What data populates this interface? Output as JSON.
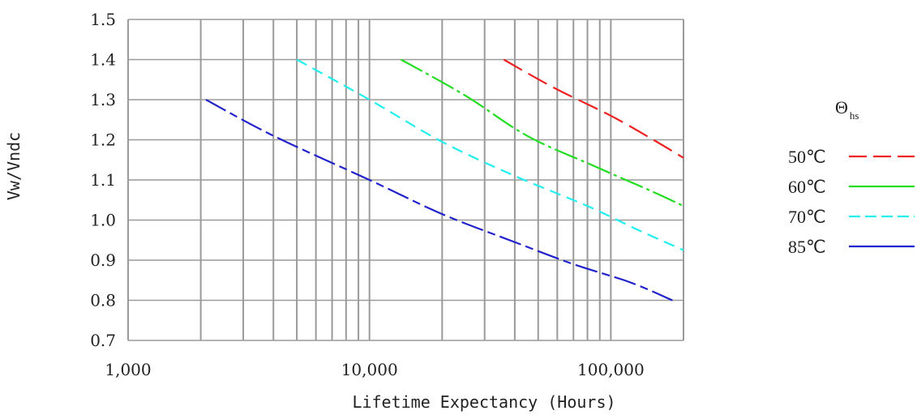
{
  "chart_data": {
    "type": "line",
    "title": "",
    "xlabel": "Lifetime Expectancy (Hours)",
    "ylabel": "Vw/Vndc",
    "x_scale": "log",
    "xlim": [
      1000,
      200000
    ],
    "ylim": [
      0.7,
      1.5
    ],
    "grid": true,
    "x_ticks": [
      {
        "value": 1000,
        "label": "1,000"
      },
      {
        "value": 10000,
        "label": "10,000"
      },
      {
        "value": 100000,
        "label": "100,000"
      }
    ],
    "y_ticks": [
      {
        "value": 0.7,
        "label": "0.7"
      },
      {
        "value": 0.8,
        "label": "0.8"
      },
      {
        "value": 0.9,
        "label": "0.9"
      },
      {
        "value": 1.0,
        "label": "1.0"
      },
      {
        "value": 1.1,
        "label": "1.1"
      },
      {
        "value": 1.2,
        "label": "1.2"
      },
      {
        "value": 1.3,
        "label": "1.3"
      },
      {
        "value": 1.4,
        "label": "1.4"
      },
      {
        "value": 1.5,
        "label": "1.5"
      }
    ],
    "legend": {
      "title": "Θ",
      "title_subscript": "hs",
      "placement": "right"
    },
    "series": [
      {
        "name": "50℃",
        "color": "#ee2222",
        "dash": "long-dash",
        "points": [
          {
            "x": 36000,
            "y": 1.4
          },
          {
            "x": 58000,
            "y": 1.33
          },
          {
            "x": 100000,
            "y": 1.26
          },
          {
            "x": 150000,
            "y": 1.2
          },
          {
            "x": 200000,
            "y": 1.155
          }
        ]
      },
      {
        "name": "60℃",
        "color": "#22dd22",
        "dash": "dash-dot",
        "points": [
          {
            "x": 13500,
            "y": 1.4
          },
          {
            "x": 25000,
            "y": 1.31
          },
          {
            "x": 45000,
            "y": 1.21
          },
          {
            "x": 85000,
            "y": 1.135
          },
          {
            "x": 150000,
            "y": 1.07
          },
          {
            "x": 200000,
            "y": 1.035
          }
        ]
      },
      {
        "name": "70℃",
        "color": "#22eeee",
        "dash": "dash",
        "points": [
          {
            "x": 5000,
            "y": 1.4
          },
          {
            "x": 10000,
            "y": 1.3
          },
          {
            "x": 20000,
            "y": 1.195
          },
          {
            "x": 40000,
            "y": 1.11
          },
          {
            "x": 80000,
            "y": 1.035
          },
          {
            "x": 130000,
            "y": 0.975
          },
          {
            "x": 200000,
            "y": 0.925
          }
        ]
      },
      {
        "name": "85℃",
        "color": "#2222cc",
        "dash": "mixed-dash",
        "points": [
          {
            "x": 2100,
            "y": 1.3
          },
          {
            "x": 4000,
            "y": 1.21
          },
          {
            "x": 10000,
            "y": 1.1
          },
          {
            "x": 20000,
            "y": 1.015
          },
          {
            "x": 40000,
            "y": 0.945
          },
          {
            "x": 70000,
            "y": 0.89
          },
          {
            "x": 120000,
            "y": 0.845
          },
          {
            "x": 180000,
            "y": 0.8
          }
        ]
      }
    ]
  }
}
